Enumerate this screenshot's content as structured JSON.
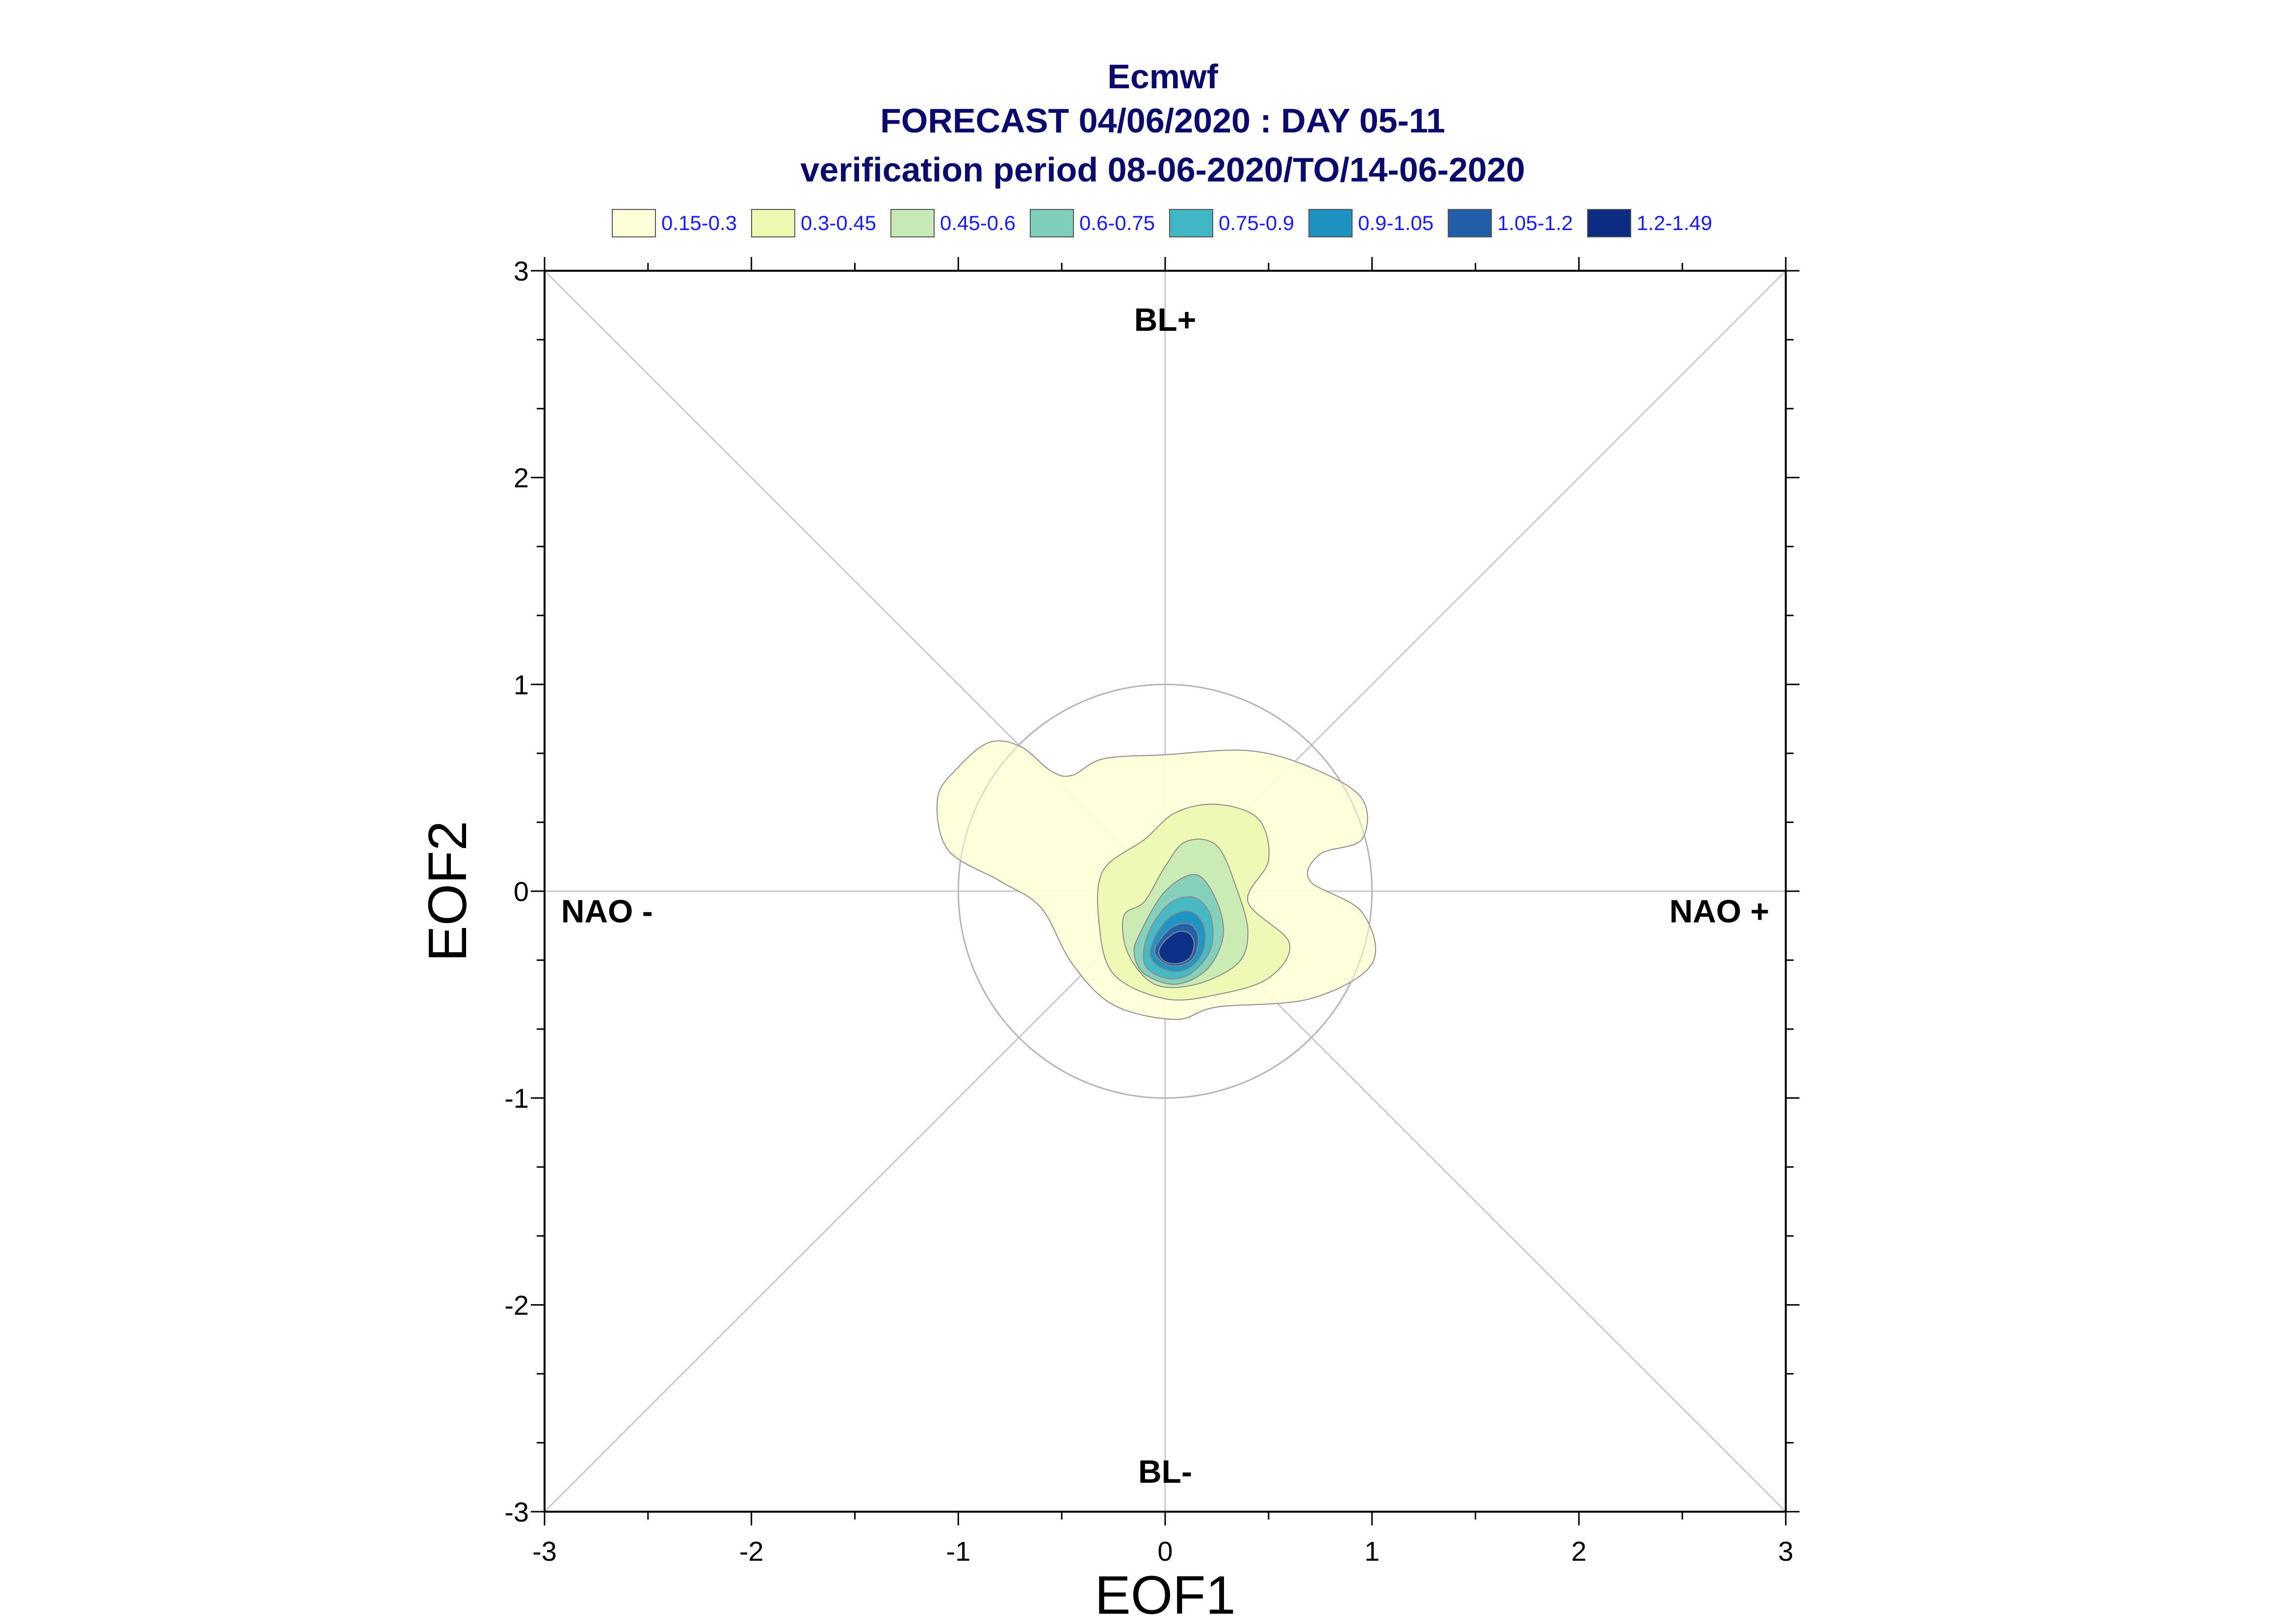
{
  "chart_data": {
    "type": "contour",
    "title_lines": [
      "Ecmwf",
      "FORECAST 04/06/2020 : DAY 05-11",
      "verification period 08-06-2020/TO/14-06-2020"
    ],
    "xlabel": "EOF1",
    "ylabel": "EOF2",
    "xlim": [
      -3,
      3
    ],
    "ylim": [
      -3,
      3
    ],
    "x_ticks": [
      "-3",
      "-2",
      "-1",
      "0",
      "1",
      "2",
      "3"
    ],
    "y_ticks": [
      "-3",
      "-2",
      "-1",
      "0",
      "1",
      "2",
      "3"
    ],
    "regime_labels": {
      "top": "BL+",
      "bottom": "BL-",
      "left": "NAO -",
      "right": "NAO +"
    },
    "reference_circle_radius": 1,
    "legend": [
      {
        "label": "0.15-0.3",
        "color": "#ffffd9"
      },
      {
        "label": "0.3-0.45",
        "color": "#edf8b1"
      },
      {
        "label": "0.45-0.6",
        "color": "#c7e9b4"
      },
      {
        "label": "0.6-0.75",
        "color": "#7fcdbb"
      },
      {
        "label": "0.75-0.9",
        "color": "#41b6c4"
      },
      {
        "label": "0.9-1.05",
        "color": "#1d91c0"
      },
      {
        "label": "1.05-1.2",
        "color": "#225ea8"
      },
      {
        "label": "1.2-1.49",
        "color": "#0c2c84"
      }
    ],
    "contours": [
      {
        "level": "0.15-0.3",
        "points": [
          [
            -1.1,
            0.45
          ],
          [
            -1.0,
            0.6
          ],
          [
            -0.85,
            0.72
          ],
          [
            -0.7,
            0.7
          ],
          [
            -0.55,
            0.58
          ],
          [
            -0.45,
            0.56
          ],
          [
            -0.3,
            0.64
          ],
          [
            0.0,
            0.66
          ],
          [
            0.4,
            0.68
          ],
          [
            0.7,
            0.6
          ],
          [
            0.95,
            0.45
          ],
          [
            0.95,
            0.25
          ],
          [
            0.75,
            0.18
          ],
          [
            0.7,
            0.05
          ],
          [
            0.95,
            -0.1
          ],
          [
            1.0,
            -0.35
          ],
          [
            0.7,
            -0.52
          ],
          [
            0.25,
            -0.56
          ],
          [
            0.05,
            -0.62
          ],
          [
            -0.25,
            -0.55
          ],
          [
            -0.45,
            -0.35
          ],
          [
            -0.6,
            -0.08
          ],
          [
            -0.8,
            0.05
          ],
          [
            -1.05,
            0.2
          ]
        ]
      },
      {
        "level": "0.3-0.45",
        "points": [
          [
            -0.3,
            0.1
          ],
          [
            -0.1,
            0.25
          ],
          [
            0.05,
            0.38
          ],
          [
            0.25,
            0.42
          ],
          [
            0.45,
            0.35
          ],
          [
            0.5,
            0.15
          ],
          [
            0.4,
            -0.05
          ],
          [
            0.6,
            -0.25
          ],
          [
            0.5,
            -0.42
          ],
          [
            0.25,
            -0.5
          ],
          [
            0.0,
            -0.52
          ],
          [
            -0.25,
            -0.4
          ],
          [
            -0.32,
            -0.15
          ]
        ]
      },
      {
        "level": "0.45-0.6",
        "points": [
          [
            -0.1,
            -0.05
          ],
          [
            0.0,
            0.12
          ],
          [
            0.1,
            0.24
          ],
          [
            0.25,
            0.22
          ],
          [
            0.35,
            0.0
          ],
          [
            0.4,
            -0.2
          ],
          [
            0.35,
            -0.35
          ],
          [
            0.15,
            -0.45
          ],
          [
            -0.05,
            -0.45
          ],
          [
            -0.18,
            -0.3
          ],
          [
            -0.2,
            -0.12
          ]
        ]
      },
      {
        "level": "0.6-0.75",
        "points": [
          [
            -0.12,
            -0.2
          ],
          [
            0.0,
            0.0
          ],
          [
            0.15,
            0.08
          ],
          [
            0.25,
            -0.05
          ],
          [
            0.28,
            -0.22
          ],
          [
            0.2,
            -0.38
          ],
          [
            0.05,
            -0.45
          ],
          [
            -0.1,
            -0.4
          ],
          [
            -0.15,
            -0.3
          ]
        ]
      },
      {
        "level": "0.75-0.9",
        "points": [
          [
            -0.08,
            -0.2
          ],
          [
            0.02,
            -0.06
          ],
          [
            0.14,
            -0.03
          ],
          [
            0.22,
            -0.12
          ],
          [
            0.22,
            -0.28
          ],
          [
            0.12,
            -0.4
          ],
          [
            0.0,
            -0.42
          ],
          [
            -0.1,
            -0.35
          ]
        ]
      },
      {
        "level": "0.9-1.05",
        "points": [
          [
            -0.05,
            -0.22
          ],
          [
            0.03,
            -0.12
          ],
          [
            0.13,
            -0.1
          ],
          [
            0.19,
            -0.18
          ],
          [
            0.18,
            -0.3
          ],
          [
            0.1,
            -0.38
          ],
          [
            0.0,
            -0.38
          ],
          [
            -0.07,
            -0.32
          ]
        ]
      },
      {
        "level": "1.05-1.2",
        "points": [
          [
            -0.03,
            -0.24
          ],
          [
            0.04,
            -0.17
          ],
          [
            0.12,
            -0.16
          ],
          [
            0.16,
            -0.22
          ],
          [
            0.14,
            -0.32
          ],
          [
            0.07,
            -0.36
          ],
          [
            0.0,
            -0.35
          ],
          [
            -0.05,
            -0.3
          ]
        ]
      },
      {
        "level": "1.2-1.49",
        "points": [
          [
            -0.01,
            -0.25
          ],
          [
            0.05,
            -0.2
          ],
          [
            0.11,
            -0.2
          ],
          [
            0.14,
            -0.25
          ],
          [
            0.12,
            -0.32
          ],
          [
            0.06,
            -0.35
          ],
          [
            0.0,
            -0.34
          ],
          [
            -0.03,
            -0.3
          ]
        ]
      }
    ]
  }
}
